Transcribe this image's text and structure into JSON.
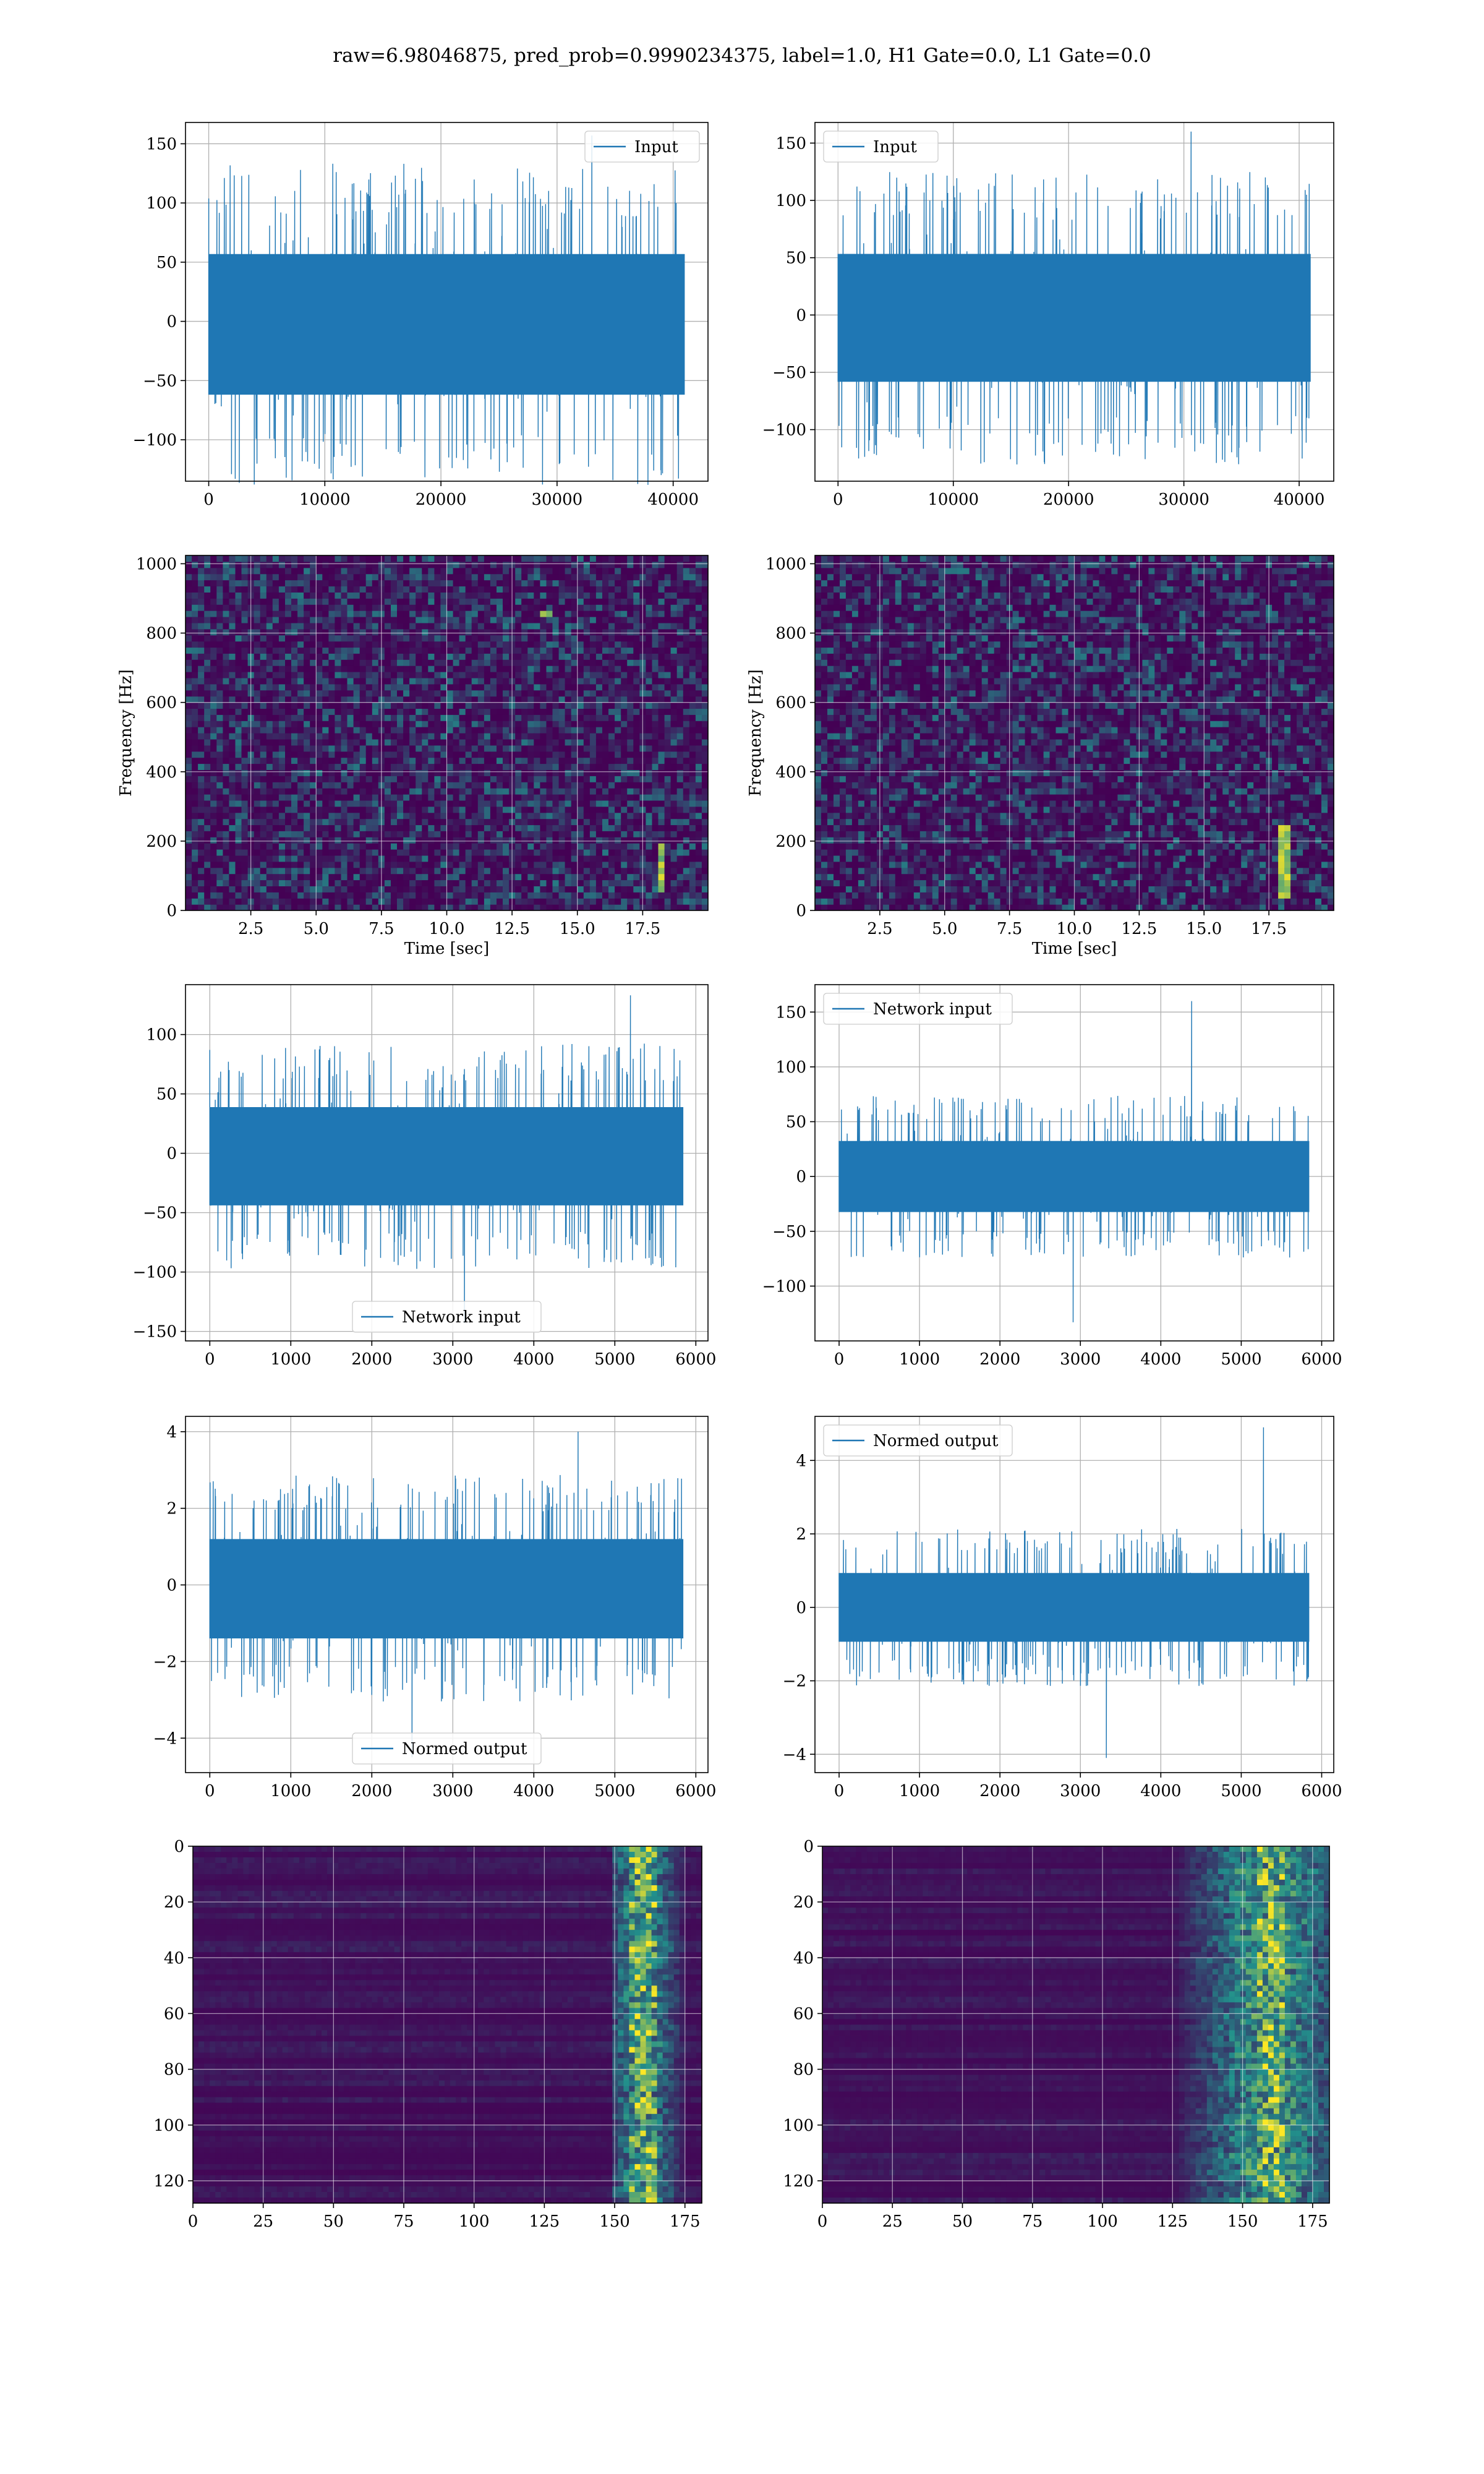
{
  "suptitle": "raw=6.98046875, pred_prob=0.9990234375, label=1.0, H1 Gate=0.0, L1 Gate=0.0",
  "style": {
    "line_color": "#1f77b4",
    "grid_color": "#b0b0b0",
    "heat_low": "#440154",
    "heat_mid": "#21918c",
    "heat_high": "#fde725"
  },
  "chart_data": [
    {
      "id": "input-left",
      "type": "line",
      "xlim": [
        -2000,
        43000
      ],
      "ylim": [
        -135,
        168
      ],
      "xticks": [
        0,
        10000,
        20000,
        30000,
        40000
      ],
      "yticks": [
        -100,
        -50,
        0,
        50,
        100,
        150
      ],
      "series": [
        {
          "name": "Input",
          "x_range": [
            0,
            40960
          ],
          "envelope": [
            -85,
            80
          ],
          "max": 157,
          "min": -127
        }
      ],
      "legend": "upper right",
      "grid": true
    },
    {
      "id": "input-right",
      "type": "line",
      "xlim": [
        -2000,
        43000
      ],
      "ylim": [
        -145,
        168
      ],
      "xticks": [
        0,
        10000,
        20000,
        30000,
        40000
      ],
      "yticks": [
        -100,
        -50,
        0,
        50,
        100,
        150
      ],
      "series": [
        {
          "name": "Input",
          "x_range": [
            0,
            40960
          ],
          "envelope": [
            -80,
            75
          ],
          "max": 160,
          "min": -130
        }
      ],
      "legend": "upper left",
      "grid": true
    },
    {
      "id": "spectrogram-left",
      "type": "heatmap",
      "xlabel": "Time [sec]",
      "ylabel": "Frequency [Hz]",
      "xlim": [
        0,
        20
      ],
      "ylim": [
        0,
        1024
      ],
      "xticks": [
        "2.5",
        "5.0",
        "7.5",
        "10.0",
        "12.5",
        "15.0",
        "17.5"
      ],
      "yticks": [
        "0",
        "200",
        "400",
        "600",
        "800",
        "1000"
      ],
      "grid": true,
      "hotspots": [
        {
          "t": 18.2,
          "f_range": [
            50,
            200
          ]
        },
        {
          "t": 13.8,
          "f_range": [
            850,
            870
          ]
        }
      ]
    },
    {
      "id": "spectrogram-right",
      "type": "heatmap",
      "xlabel": "Time [sec]",
      "ylabel": "Frequency [Hz]",
      "xlim": [
        0,
        20
      ],
      "ylim": [
        0,
        1024
      ],
      "xticks": [
        "2.5",
        "5.0",
        "7.5",
        "10.0",
        "12.5",
        "15.0",
        "17.5"
      ],
      "yticks": [
        "0",
        "200",
        "400",
        "600",
        "800",
        "1000"
      ],
      "grid": true,
      "hotspots": [
        {
          "t": 18.1,
          "f_range": [
            40,
            240
          ]
        }
      ]
    },
    {
      "id": "network-left",
      "type": "line",
      "xlim": [
        -300,
        6150
      ],
      "ylim": [
        -158,
        142
      ],
      "xticks": [
        0,
        1000,
        2000,
        3000,
        4000,
        5000,
        6000
      ],
      "yticks": [
        -150,
        -100,
        -50,
        0,
        50,
        100
      ],
      "series": [
        {
          "name": "Network input",
          "x_range": [
            0,
            5840
          ],
          "envelope": [
            -60,
            55
          ],
          "max": 133,
          "min": -143
        }
      ],
      "legend": "lower center",
      "grid": true
    },
    {
      "id": "network-right",
      "type": "line",
      "xlim": [
        -300,
        6150
      ],
      "ylim": [
        -150,
        175
      ],
      "xticks": [
        0,
        1000,
        2000,
        3000,
        4000,
        5000,
        6000
      ],
      "yticks": [
        -100,
        -50,
        0,
        50,
        100,
        150
      ],
      "series": [
        {
          "name": "Network input",
          "x_range": [
            0,
            5840
          ],
          "envelope": [
            -45,
            45
          ],
          "max": 160,
          "min": -133
        }
      ],
      "legend": "upper left",
      "grid": true
    },
    {
      "id": "normed-left",
      "type": "line",
      "xlim": [
        -300,
        6150
      ],
      "ylim": [
        -4.9,
        4.4
      ],
      "xticks": [
        0,
        1000,
        2000,
        3000,
        4000,
        5000,
        6000
      ],
      "yticks": [
        -4,
        -2,
        0,
        2,
        4
      ],
      "series": [
        {
          "name": "Normed output",
          "x_range": [
            0,
            5840
          ],
          "envelope": [
            -1.9,
            1.7
          ],
          "max": 4.0,
          "min": -4.5
        }
      ],
      "legend": "lower center",
      "grid": true
    },
    {
      "id": "normed-right",
      "type": "line",
      "xlim": [
        -300,
        6150
      ],
      "ylim": [
        -4.5,
        5.2
      ],
      "xticks": [
        0,
        1000,
        2000,
        3000,
        4000,
        5000,
        6000
      ],
      "yticks": [
        -4,
        -2,
        0,
        2,
        4
      ],
      "series": [
        {
          "name": "Normed output",
          "x_range": [
            0,
            5840
          ],
          "envelope": [
            -1.3,
            1.3
          ],
          "max": 4.9,
          "min": -4.1
        }
      ],
      "legend": "upper left",
      "grid": true
    },
    {
      "id": "activation-left",
      "type": "heatmap",
      "xlim": [
        0,
        181
      ],
      "ylim": [
        128,
        0
      ],
      "xticks": [
        "0",
        "25",
        "50",
        "75",
        "100",
        "125",
        "150",
        "175"
      ],
      "yticks": [
        "0",
        "20",
        "40",
        "60",
        "80",
        "100",
        "120"
      ],
      "grid": true,
      "hot_columns": [
        150,
        175
      ],
      "peak_column": 160
    },
    {
      "id": "activation-right",
      "type": "heatmap",
      "xlim": [
        0,
        181
      ],
      "ylim": [
        128,
        0
      ],
      "xticks": [
        "0",
        "25",
        "50",
        "75",
        "100",
        "125",
        "150",
        "175"
      ],
      "yticks": [
        "0",
        "20",
        "40",
        "60",
        "80",
        "100",
        "120"
      ],
      "grid": true,
      "hot_columns": [
        125,
        181
      ],
      "peak_column": 160
    }
  ]
}
